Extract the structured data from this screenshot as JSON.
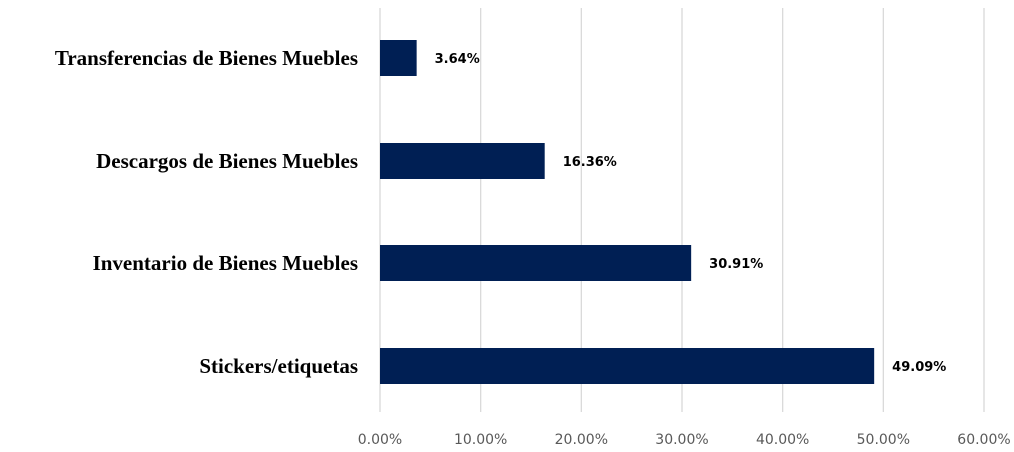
{
  "chart_data": {
    "type": "bar",
    "orientation": "horizontal",
    "categories": [
      "Transferencias de Bienes Muebles",
      "Descargos de Bienes Muebles",
      "Inventario de Bienes Muebles",
      "Stickers/etiquetas"
    ],
    "values": [
      3.64,
      16.36,
      30.91,
      49.09
    ],
    "data_labels": [
      "3.64%",
      "16.36%",
      "30.91%",
      "49.09%"
    ],
    "x_ticks": [
      "0.00%",
      "10.00%",
      "20.00%",
      "30.00%",
      "40.00%",
      "50.00%",
      "60.00%"
    ],
    "xlim": [
      0,
      60
    ],
    "grid": true,
    "legend": "none",
    "title": "",
    "xlabel": "",
    "ylabel": "",
    "bar_color": "#001f54"
  }
}
